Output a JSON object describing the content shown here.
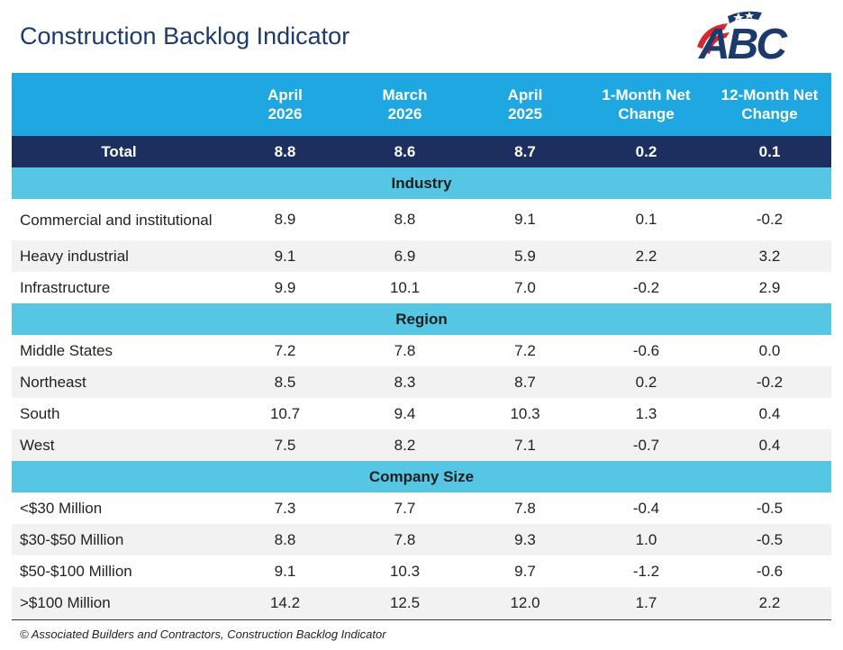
{
  "page": {
    "title": "Construction Backlog Indicator"
  },
  "logo": {
    "text": "ABC",
    "icon": "abc-flag-logo",
    "colors": {
      "navy": "#1c3a6b",
      "red": "#d6262e"
    }
  },
  "colors": {
    "header": "#1ea7e1",
    "total": "#1c2f5e",
    "section": "#55c6e4",
    "alt_row": "#f2f2f2"
  },
  "table": {
    "columns": [
      "",
      "April\n2026",
      "March\n2026",
      "April\n2025",
      "1-Month Net\nChange",
      "12-Month Net\nChange"
    ],
    "total": {
      "label": "Total",
      "values": [
        "8.8",
        "8.6",
        "8.7",
        "0.2",
        "0.1"
      ]
    },
    "sections": [
      {
        "name": "Industry",
        "rows": [
          {
            "label": "Commercial and institutional",
            "values": [
              "8.9",
              "8.8",
              "9.1",
              "0.1",
              "-0.2"
            ]
          },
          {
            "label": "Heavy industrial",
            "values": [
              "9.1",
              "6.9",
              "5.9",
              "2.2",
              "3.2"
            ]
          },
          {
            "label": "Infrastructure",
            "values": [
              "9.9",
              "10.1",
              "7.0",
              "-0.2",
              "2.9"
            ]
          }
        ]
      },
      {
        "name": "Region",
        "rows": [
          {
            "label": "Middle States",
            "values": [
              "7.2",
              "7.8",
              "7.2",
              "-0.6",
              "0.0"
            ]
          },
          {
            "label": "Northeast",
            "values": [
              "8.5",
              "8.3",
              "8.7",
              "0.2",
              "-0.2"
            ]
          },
          {
            "label": "South",
            "values": [
              "10.7",
              "9.4",
              "10.3",
              "1.3",
              "0.4"
            ]
          },
          {
            "label": "West",
            "values": [
              "7.5",
              "8.2",
              "7.1",
              "-0.7",
              "0.4"
            ]
          }
        ]
      },
      {
        "name": "Company Size",
        "rows": [
          {
            "label": "<$30 Million",
            "values": [
              "7.3",
              "7.7",
              "7.8",
              "-0.4",
              "-0.5"
            ]
          },
          {
            "label": "$30-$50 Million",
            "values": [
              "8.8",
              "7.8",
              "9.3",
              "1.0",
              "-0.5"
            ]
          },
          {
            "label": "$50-$100 Million",
            "values": [
              "9.1",
              "10.3",
              "9.7",
              "-1.2",
              "-0.6"
            ]
          },
          {
            "label": ">$100 Million",
            "values": [
              "14.2",
              "12.5",
              "12.0",
              "1.7",
              "2.2"
            ]
          }
        ]
      }
    ]
  },
  "footer": {
    "text": "© Associated Builders and Contractors, Construction Backlog Indicator"
  }
}
